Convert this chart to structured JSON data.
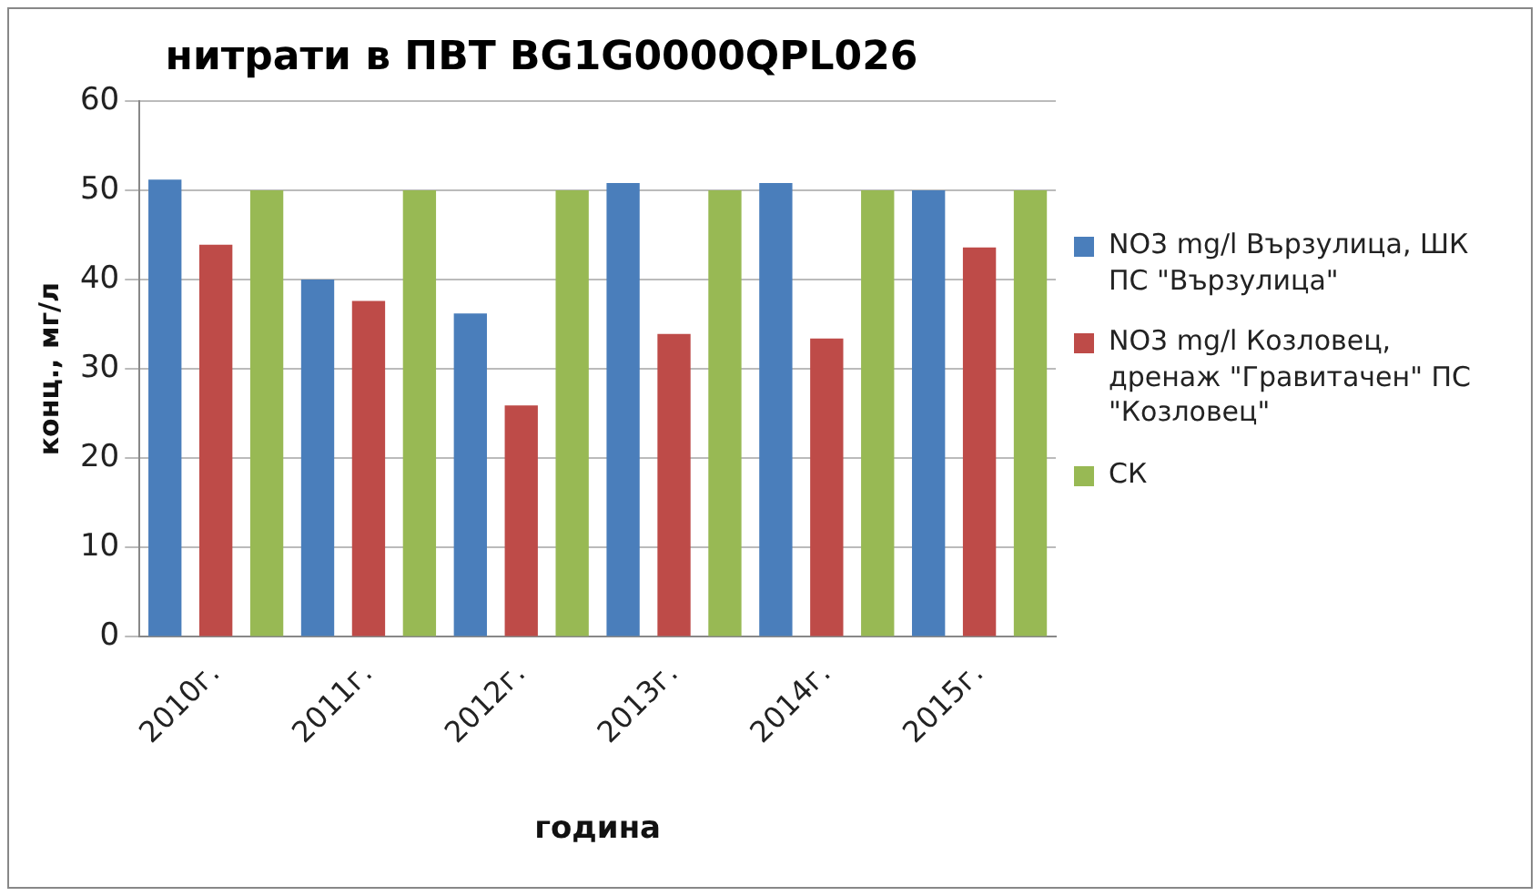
{
  "chart_data": {
    "type": "bar",
    "title": "нитрати в ПВТ BG1G0000QPL026",
    "xlabel": "година",
    "ylabel": "конц., мг/л",
    "categories": [
      "2010г.",
      "2011г.",
      "2012г.",
      "2013г.",
      "2014г.",
      "2015г."
    ],
    "series": [
      {
        "name": "NO3  mg/l Вързулица, ШК ПС \"Вързулица\"",
        "color": "#4a7ebb",
        "values": [
          51.2,
          40,
          36.2,
          50.8,
          50.8,
          50
        ]
      },
      {
        "name": "NO3  mg/l Козловец, дренаж \"Гравитачен\" ПС \"Козловец\"",
        "color": "#be4b48",
        "values": [
          43.9,
          37.6,
          25.9,
          33.9,
          33.4,
          43.6
        ]
      },
      {
        "name": "СК",
        "color": "#98b954",
        "values": [
          50,
          50,
          50,
          50,
          50,
          50
        ]
      }
    ],
    "ylim": [
      0,
      60
    ],
    "yticks": [
      0,
      10,
      20,
      30,
      40,
      50,
      60
    ],
    "grid": "y",
    "legend": "right"
  }
}
